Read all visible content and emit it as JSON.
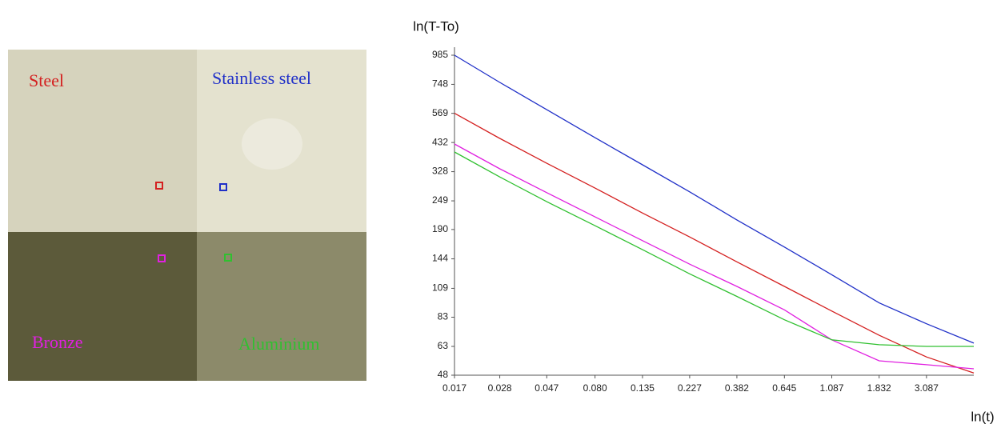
{
  "photo": {
    "labels": [
      {
        "text": "Steel",
        "color": "#d42020"
      },
      {
        "text": "Stainless steel",
        "color": "#2030c8"
      },
      {
        "text": "Bronze",
        "color": "#e020e0"
      },
      {
        "text": "Aluminium",
        "color": "#30c030"
      }
    ]
  },
  "chart_data": {
    "type": "line",
    "xlabel": "ln(t)",
    "ylabel": "ln(T-To)",
    "xlog": true,
    "ylog": true,
    "x": [
      0.017,
      0.028,
      0.047,
      0.08,
      0.135,
      0.227,
      0.382,
      0.645,
      1.087,
      1.832,
      3.087,
      5.2
    ],
    "series": [
      {
        "name": "Stainless steel",
        "color": "#2030c8",
        "values": [
          985,
          762,
          589,
          452,
          350,
          271,
          208,
          161,
          124,
          95,
          78,
          65
        ]
      },
      {
        "name": "Steel",
        "color": "#d42020",
        "values": [
          569,
          449,
          355,
          281,
          222,
          177,
          140,
          111,
          88,
          70,
          57,
          49
        ]
      },
      {
        "name": "Bronze",
        "color": "#e020e0",
        "values": [
          426,
          337,
          269,
          214,
          171,
          137,
          111,
          89,
          67,
          55,
          53,
          51
        ]
      },
      {
        "name": "Aluminium",
        "color": "#30c030",
        "values": [
          395,
          312,
          247,
          197,
          157,
          125,
          101,
          81,
          67,
          64,
          63,
          63
        ]
      }
    ],
    "xlim": [
      0.017,
      5.2
    ],
    "ylim": [
      48,
      985
    ],
    "xticks": [
      0.017,
      0.028,
      0.047,
      {
        "value": 0.08,
        "label": "0.080"
      },
      0.135,
      0.227,
      0.382,
      0.645,
      1.087,
      1.832,
      3.087
    ],
    "yticks": [
      985,
      748,
      569,
      432,
      328,
      249,
      190,
      144,
      109,
      83,
      63,
      48
    ]
  }
}
